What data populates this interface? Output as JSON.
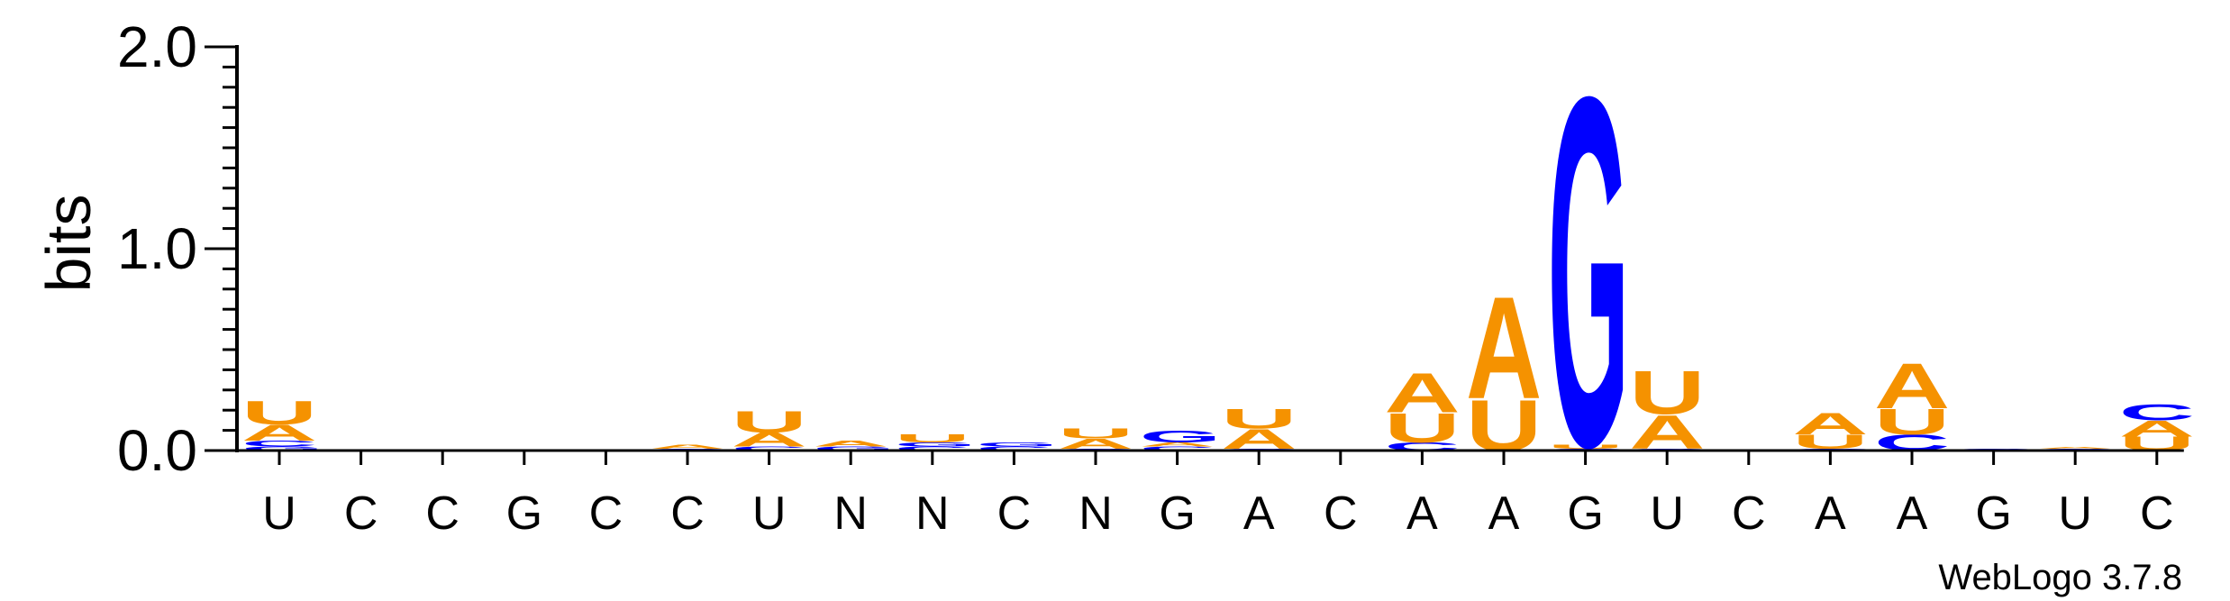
{
  "chart_data": {
    "type": "sequence_logo",
    "title": "",
    "ylabel": "bits",
    "ylim": [
      0,
      2.0
    ],
    "yticks": [
      {
        "value": 0.0,
        "label": "0.0"
      },
      {
        "value": 1.0,
        "label": "1.0"
      },
      {
        "value": 2.0,
        "label": "2.0"
      }
    ],
    "colors": {
      "A": "#f59200",
      "U": "#f59200",
      "G": "#0000ff",
      "C": "#0000ff"
    },
    "positions": [
      {
        "label": "U",
        "stack": [
          {
            "letter": "G",
            "bits": 0.02
          },
          {
            "letter": "C",
            "bits": 0.03
          },
          {
            "letter": "A",
            "bits": 0.08
          },
          {
            "letter": "U",
            "bits": 0.12
          }
        ]
      },
      {
        "label": "C",
        "stack": []
      },
      {
        "label": "C",
        "stack": []
      },
      {
        "label": "G",
        "stack": []
      },
      {
        "label": "C",
        "stack": []
      },
      {
        "label": "C",
        "stack": [
          {
            "letter": "C",
            "bits": 0.01
          },
          {
            "letter": "A",
            "bits": 0.02
          }
        ]
      },
      {
        "label": "U",
        "stack": [
          {
            "letter": "C",
            "bits": 0.02
          },
          {
            "letter": "A",
            "bits": 0.07
          },
          {
            "letter": "U",
            "bits": 0.11
          }
        ]
      },
      {
        "label": "N",
        "stack": [
          {
            "letter": "G",
            "bits": 0.02
          },
          {
            "letter": "A",
            "bits": 0.03
          }
        ]
      },
      {
        "label": "N",
        "stack": [
          {
            "letter": "C",
            "bits": 0.02
          },
          {
            "letter": "G",
            "bits": 0.02
          },
          {
            "letter": "U",
            "bits": 0.04
          }
        ]
      },
      {
        "label": "C",
        "stack": [
          {
            "letter": "C",
            "bits": 0.02
          },
          {
            "letter": "G",
            "bits": 0.02
          }
        ]
      },
      {
        "label": "N",
        "stack": [
          {
            "letter": "C",
            "bits": 0.01
          },
          {
            "letter": "A",
            "bits": 0.05
          },
          {
            "letter": "U",
            "bits": 0.05
          }
        ]
      },
      {
        "label": "G",
        "stack": [
          {
            "letter": "C",
            "bits": 0.02
          },
          {
            "letter": "A",
            "bits": 0.02
          },
          {
            "letter": "G",
            "bits": 0.06
          }
        ]
      },
      {
        "label": "A",
        "stack": [
          {
            "letter": "G",
            "bits": 0.01
          },
          {
            "letter": "A",
            "bits": 0.1
          },
          {
            "letter": "U",
            "bits": 0.1
          }
        ]
      },
      {
        "label": "C",
        "stack": []
      },
      {
        "label": "A",
        "stack": [
          {
            "letter": "C",
            "bits": 0.04
          },
          {
            "letter": "U",
            "bits": 0.15
          },
          {
            "letter": "A",
            "bits": 0.2
          }
        ]
      },
      {
        "label": "A",
        "stack": [
          {
            "letter": "U",
            "bits": 0.26
          },
          {
            "letter": "A",
            "bits": 0.52
          }
        ]
      },
      {
        "label": "G",
        "stack": [
          {
            "letter": "C",
            "bits": 0.01
          },
          {
            "letter": "U",
            "bits": 0.02
          },
          {
            "letter": "G",
            "bits": 1.78
          }
        ]
      },
      {
        "label": "U",
        "stack": [
          {
            "letter": "C",
            "bits": 0.01
          },
          {
            "letter": "A",
            "bits": 0.17
          },
          {
            "letter": "U",
            "bits": 0.22
          }
        ]
      },
      {
        "label": "C",
        "stack": []
      },
      {
        "label": "A",
        "stack": [
          {
            "letter": "G",
            "bits": 0.01
          },
          {
            "letter": "U",
            "bits": 0.07
          },
          {
            "letter": "A",
            "bits": 0.11
          }
        ]
      },
      {
        "label": "A",
        "stack": [
          {
            "letter": "C",
            "bits": 0.08
          },
          {
            "letter": "U",
            "bits": 0.13
          },
          {
            "letter": "A",
            "bits": 0.23
          }
        ]
      },
      {
        "label": "G",
        "stack": [
          {
            "letter": "C",
            "bits": 0.01
          }
        ]
      },
      {
        "label": "U",
        "stack": [
          {
            "letter": "C",
            "bits": 0.01
          },
          {
            "letter": "A",
            "bits": 0.01
          }
        ]
      },
      {
        "label": "C",
        "stack": [
          {
            "letter": "U",
            "bits": 0.07
          },
          {
            "letter": "A",
            "bits": 0.08
          },
          {
            "letter": "C",
            "bits": 0.08
          }
        ]
      }
    ]
  },
  "footer": {
    "credit": "WebLogo 3.7.8"
  }
}
